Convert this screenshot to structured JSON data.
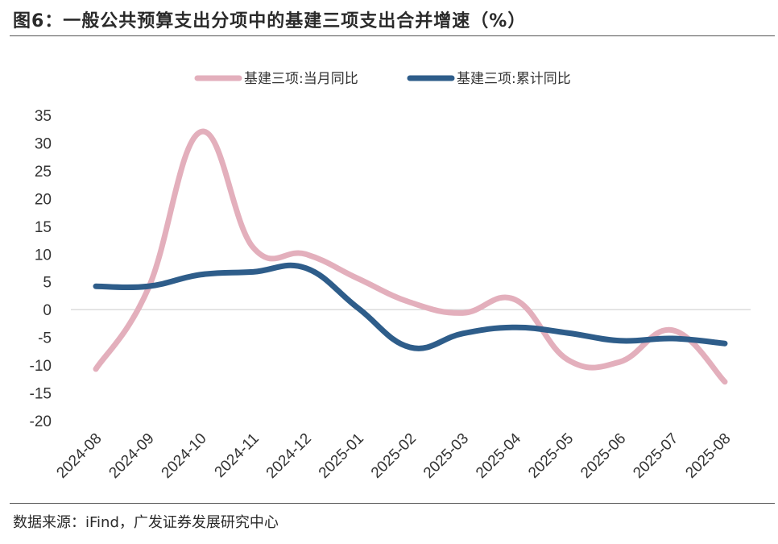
{
  "title": "图6：一般公共预算支出分项中的基建三项支出合并增速（%）",
  "source": "数据来源：iFind，广发证券发展研究中心",
  "chart_data": {
    "type": "line",
    "title": "图6：一般公共预算支出分项中的基建三项支出合并增速（%）",
    "xlabel": "",
    "ylabel": "",
    "categories": [
      "2024-08",
      "2024-09",
      "2024-10",
      "2024-11",
      "2024-12",
      "2025-01",
      "2025-02",
      "2025-03",
      "2025-04",
      "2025-05",
      "2025-06",
      "2025-07",
      "2025-08"
    ],
    "ylim": [
      -20,
      35
    ],
    "yticks": [
      35,
      30,
      25,
      20,
      15,
      10,
      5,
      0,
      -5,
      -10,
      -15,
      -20
    ],
    "legend_position": "top",
    "series": [
      {
        "name": "基建三项:当月同比",
        "color": "#e3afbc",
        "values": [
          -10.7,
          3.8,
          32.0,
          11.2,
          10.0,
          5.6,
          1.3,
          -0.6,
          1.8,
          -9.0,
          -9.4,
          -3.7,
          -13.0
        ]
      },
      {
        "name": "基建三项:累计同比",
        "color": "#2e5d8a",
        "values": [
          4.2,
          4.2,
          6.3,
          6.8,
          7.5,
          0.3,
          -6.8,
          -4.3,
          -3.2,
          -4.2,
          -5.6,
          -5.2,
          -6.1
        ]
      }
    ]
  }
}
